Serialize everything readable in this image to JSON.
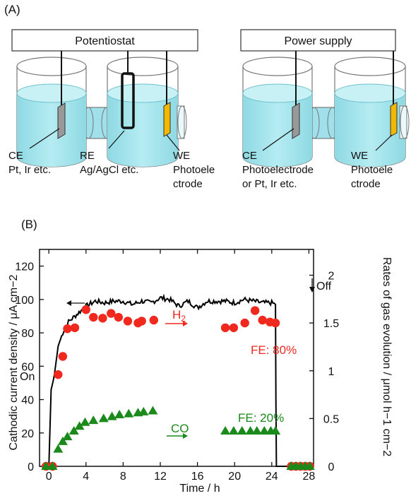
{
  "panel_a": {
    "label": "(A)",
    "left_box": "Potentiostat",
    "right_box": "Power supply",
    "labels_left": {
      "ce_line1": "CE",
      "ce_line2": "Pt, Ir etc.",
      "re_line1": "RE",
      "re_line2": "Ag/AgCl etc.",
      "we_line1": "WE",
      "we_line2": "Photoele",
      "we_line3": "ctrode"
    },
    "labels_right": {
      "ce_line1": "CE",
      "ce_line2": "Photoelectrode",
      "ce_line3": "or Pt, Ir etc.",
      "we_line1": "WE",
      "we_line2": "Photoele",
      "we_line3": "ctrode"
    },
    "colors": {
      "liquid": "#a9e6ee",
      "liquid_dark": "#7fd0dc",
      "counter_electrode": "#999999",
      "working_electrode": "#f2b800"
    }
  },
  "panel_b": {
    "label": "(B)",
    "chart_data": {
      "type": "scatter",
      "xlabel": "Time / h",
      "ylabel_left": "Cathodic current density / μA cm−2",
      "ylabel_right": "Rates of gas evolution / μmol h−1 cm−2",
      "x_ticks": [
        "0",
        "4",
        "8",
        "12",
        "16",
        "20",
        "24",
        "28"
      ],
      "y_left_ticks": [
        "0",
        "20",
        "40",
        "60",
        "80",
        "100",
        "120"
      ],
      "y_right_ticks": [
        "0",
        "0.5",
        "1",
        "1.5",
        "2"
      ],
      "xlim": [
        -1,
        28.5
      ],
      "ylim_left": [
        0,
        130
      ],
      "ylim_right": [
        0,
        2.27
      ],
      "series": [
        {
          "name": "H2",
          "label_text": "H",
          "label_sub": "2",
          "color": "#f0281e",
          "marker": "circle",
          "x": [
            -0.3,
            0.4,
            1.0,
            1.5,
            2.0,
            2.8,
            4.0,
            4.8,
            5.8,
            6.7,
            7.5,
            8.5,
            9.6,
            10.0,
            11.3,
            19.0,
            19.9,
            21.1,
            22.2,
            23.0,
            23.8,
            24.4,
            26.1,
            26.6,
            27.1,
            27.6,
            28.1
          ],
          "y": [
            0,
            0,
            0.96,
            1.15,
            1.44,
            1.45,
            1.64,
            1.56,
            1.55,
            1.6,
            1.56,
            1.52,
            1.5,
            1.52,
            1.53,
            1.45,
            1.45,
            1.5,
            1.63,
            1.53,
            1.51,
            1.5,
            0,
            0,
            0,
            0,
            0
          ]
        },
        {
          "name": "CO",
          "label_text": "CO",
          "color": "#1b8a1b",
          "marker": "triangle",
          "x": [
            -0.3,
            0.4,
            1.0,
            1.5,
            2.0,
            2.7,
            3.3,
            3.9,
            4.8,
            5.9,
            6.8,
            7.6,
            8.6,
            9.6,
            10.2,
            11.2,
            19.0,
            19.9,
            20.8,
            21.7,
            22.4,
            23.2,
            23.9,
            24.4,
            26.1,
            26.6,
            27.1,
            27.6,
            28.1
          ],
          "y": [
            0,
            0,
            0.18,
            0.26,
            0.31,
            0.37,
            0.42,
            0.46,
            0.48,
            0.5,
            0.52,
            0.54,
            0.55,
            0.56,
            0.57,
            0.58,
            0.37,
            0.37,
            0.37,
            0.37,
            0.37,
            0.37,
            0.37,
            0.37,
            0,
            0,
            0,
            0,
            0
          ]
        }
      ],
      "current_trace": {
        "color": "#000000",
        "x": [
          -0.5,
          0,
          0.25,
          0.5,
          0.6,
          1.0,
          1.5,
          2.0,
          3.0,
          4.0,
          5.0,
          6.0,
          7.0,
          8.0,
          9.0,
          10.0,
          11.0,
          12.0,
          13.0,
          14.0,
          15.0,
          16.0,
          17.0,
          18.0,
          19.0,
          20.0,
          21.0,
          22.0,
          23.0,
          24.0,
          24.4,
          24.45,
          24.5,
          28.2
        ],
        "y": [
          0,
          0,
          46,
          52,
          55,
          72,
          80,
          86,
          91,
          96,
          99,
          98,
          99,
          99,
          97,
          99,
          98,
          101,
          100,
          96,
          99,
          95,
          99,
          99,
          99,
          98,
          100,
          99,
          98,
          98,
          97,
          40,
          0,
          0
        ]
      },
      "annotations": {
        "on": "On",
        "off": "Off",
        "fe_h2": "FE: 80%",
        "fe_co": "FE: 20%"
      }
    }
  }
}
